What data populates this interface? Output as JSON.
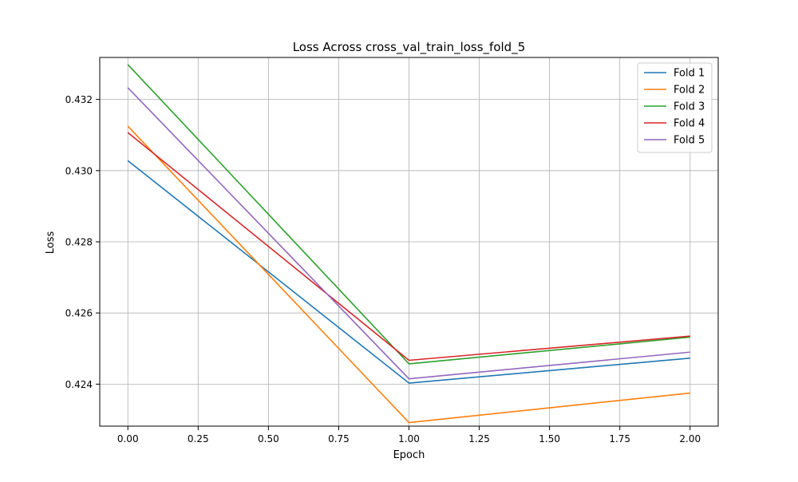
{
  "chart_data": {
    "type": "line",
    "title": "Loss Across cross_val_train_loss_fold_5",
    "xlabel": "Epoch",
    "ylabel": "Loss",
    "xlim": [
      -0.1,
      2.1
    ],
    "ylim": [
      0.42282,
      0.43318
    ],
    "x_ticks": [
      0.0,
      0.25,
      0.5,
      0.75,
      1.0,
      1.25,
      1.5,
      1.75,
      2.0
    ],
    "x_tick_labels": [
      "0.00",
      "0.25",
      "0.50",
      "0.75",
      "1.00",
      "1.25",
      "1.50",
      "1.75",
      "2.00"
    ],
    "y_ticks": [
      0.424,
      0.426,
      0.428,
      0.43,
      0.432
    ],
    "y_tick_labels": [
      "0.424",
      "0.426",
      "0.428",
      "0.430",
      "0.432"
    ],
    "grid": true,
    "legend_position": "top-right",
    "x": [
      0,
      1,
      2
    ],
    "series": [
      {
        "name": "Fold 1",
        "color": "#1f77b4",
        "values": [
          0.43028,
          0.42403,
          0.42473
        ]
      },
      {
        "name": "Fold 2",
        "color": "#ff7f0e",
        "values": [
          0.43125,
          0.42292,
          0.42375
        ]
      },
      {
        "name": "Fold 3",
        "color": "#2ca02c",
        "values": [
          0.43298,
          0.42457,
          0.42532
        ]
      },
      {
        "name": "Fold 4",
        "color": "#d62728",
        "values": [
          0.43107,
          0.42467,
          0.42535
        ]
      },
      {
        "name": "Fold 5",
        "color": "#9467bd",
        "values": [
          0.43233,
          0.42415,
          0.4249
        ]
      }
    ]
  }
}
